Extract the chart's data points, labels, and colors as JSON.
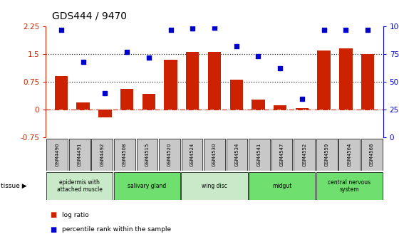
{
  "title": "GDS444 / 9470",
  "samples": [
    "GSM4490",
    "GSM4491",
    "GSM4492",
    "GSM4508",
    "GSM4515",
    "GSM4520",
    "GSM4524",
    "GSM4530",
    "GSM4534",
    "GSM4541",
    "GSM4547",
    "GSM4552",
    "GSM4559",
    "GSM4564",
    "GSM4568"
  ],
  "log_ratio": [
    0.9,
    0.2,
    -0.2,
    0.55,
    0.42,
    1.35,
    1.55,
    1.55,
    0.8,
    0.28,
    0.12,
    0.05,
    1.6,
    1.65,
    1.5
  ],
  "percentile": [
    97,
    68,
    40,
    77,
    72,
    97,
    98,
    99,
    82,
    73,
    62,
    35,
    97,
    97,
    97
  ],
  "tissue_groups": [
    {
      "label": "epidermis with\nattached muscle",
      "start": 0,
      "end": 3,
      "color": "#c8eac8"
    },
    {
      "label": "salivary gland",
      "start": 3,
      "end": 6,
      "color": "#6fe06f"
    },
    {
      "label": "wing disc",
      "start": 6,
      "end": 9,
      "color": "#c8eac8"
    },
    {
      "label": "midgut",
      "start": 9,
      "end": 12,
      "color": "#6fe06f"
    },
    {
      "label": "central nervous\nsystem",
      "start": 12,
      "end": 15,
      "color": "#6fe06f"
    }
  ],
  "bar_color": "#cc2200",
  "dot_color": "#0000cc",
  "ylim_left": [
    -0.75,
    2.25
  ],
  "ylim_right": [
    0,
    100
  ],
  "yticks_left": [
    -0.75,
    0,
    0.75,
    1.5,
    2.25
  ],
  "yticks_right": [
    0,
    25,
    50,
    75,
    100
  ],
  "hlines": [
    0.75,
    1.5
  ],
  "hline_color": "#333333",
  "zero_line_color": "#cc2200",
  "background_color": "#ffffff",
  "sample_box_color": "#c8c8c8",
  "legend_log_label": "log ratio",
  "legend_pct_label": "percentile rank within the sample"
}
